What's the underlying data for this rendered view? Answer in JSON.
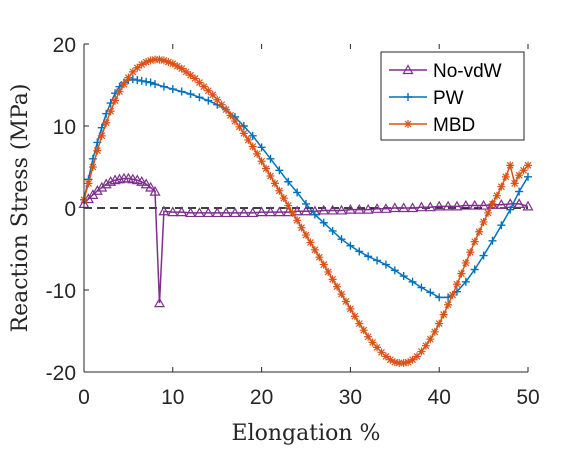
{
  "chart_data": {
    "type": "line",
    "title": "",
    "xlabel": "Elongation %",
    "ylabel": "Reaction Stress (MPa)",
    "xlim": [
      0,
      50
    ],
    "ylim": [
      -20,
      20
    ],
    "xticks": [
      "0",
      "10",
      "20",
      "30",
      "40",
      "50"
    ],
    "yticks": [
      "20",
      "10",
      "0",
      "-10",
      "-20"
    ],
    "grid": false,
    "legend_position": "top-right",
    "reference_line": {
      "y": 0,
      "style": "dashed",
      "color": "#000000"
    },
    "series": [
      {
        "name": "No-vdW",
        "color": "#7e2f8e",
        "marker": "triangle",
        "x": [
          0,
          0.5,
          1,
          1.5,
          2,
          2.5,
          3,
          3.5,
          4,
          4.5,
          5,
          5.5,
          6,
          6.5,
          7,
          7.5,
          8,
          8.5,
          9,
          10,
          11,
          12,
          13,
          14,
          15,
          16,
          17,
          18,
          19,
          20,
          21,
          22,
          23,
          24,
          25,
          26,
          27,
          28,
          29,
          30,
          31,
          32,
          33,
          34,
          35,
          36,
          37,
          38,
          39,
          40,
          41,
          42,
          43,
          44,
          45,
          46,
          47,
          48,
          49,
          50
        ],
        "y": [
          0.5,
          1.1,
          1.6,
          2.1,
          2.5,
          2.9,
          3.2,
          3.4,
          3.5,
          3.6,
          3.6,
          3.5,
          3.4,
          3.2,
          2.9,
          2.5,
          2.0,
          -11.6,
          -0.4,
          -0.5,
          -0.5,
          -0.6,
          -0.6,
          -0.6,
          -0.6,
          -0.6,
          -0.6,
          -0.6,
          -0.6,
          -0.5,
          -0.5,
          -0.5,
          -0.5,
          -0.4,
          -0.4,
          -0.4,
          -0.3,
          -0.3,
          -0.3,
          -0.2,
          -0.2,
          -0.2,
          -0.1,
          -0.1,
          0.0,
          0.0,
          0.0,
          0.1,
          0.1,
          0.2,
          0.2,
          0.2,
          0.3,
          0.3,
          0.3,
          0.4,
          0.4,
          0.5,
          0.5,
          0.2
        ]
      },
      {
        "name": "PW",
        "color": "#0072bd",
        "marker": "plus",
        "x": [
          0,
          0.5,
          1,
          1.5,
          2,
          2.5,
          3,
          3.5,
          4,
          4.5,
          5,
          5.5,
          6,
          6.5,
          7,
          7.5,
          8,
          9,
          10,
          11,
          12,
          13,
          14,
          15,
          16,
          17,
          18,
          19,
          20,
          21,
          22,
          23,
          24,
          25,
          26,
          27,
          28,
          29,
          30,
          31,
          32,
          33,
          34,
          35,
          36,
          37,
          38,
          39,
          40,
          41,
          42,
          43,
          44,
          45,
          46,
          47,
          48,
          49,
          50
        ],
        "y": [
          1.0,
          3.5,
          6.0,
          8.0,
          9.8,
          11.5,
          12.8,
          14.0,
          14.8,
          15.3,
          15.6,
          15.7,
          15.6,
          15.5,
          15.4,
          15.3,
          15.1,
          14.8,
          14.5,
          14.2,
          13.9,
          13.5,
          13.1,
          12.6,
          12.0,
          11.1,
          10.0,
          8.8,
          7.4,
          6.0,
          4.6,
          3.2,
          1.9,
          0.5,
          -0.8,
          -1.8,
          -2.8,
          -3.8,
          -4.6,
          -5.3,
          -5.9,
          -6.4,
          -6.9,
          -7.6,
          -8.3,
          -9.0,
          -9.7,
          -10.3,
          -10.9,
          -10.9,
          -10.2,
          -9.0,
          -7.5,
          -5.8,
          -4.0,
          -2.1,
          -0.2,
          2.0,
          3.8
        ]
      },
      {
        "name": "MBD",
        "color": "#d95319",
        "marker": "asterisk",
        "x": [
          0,
          0.5,
          1,
          1.5,
          2,
          2.5,
          3,
          3.5,
          4,
          4.5,
          5,
          5.5,
          6,
          6.5,
          7,
          7.5,
          8,
          8.5,
          9,
          9.5,
          10,
          10.5,
          11,
          11.5,
          12,
          12.5,
          13,
          13.5,
          14,
          14.5,
          15,
          15.5,
          16,
          16.5,
          17,
          17.5,
          18,
          18.5,
          19,
          19.5,
          20,
          20.5,
          21,
          21.5,
          22,
          22.5,
          23,
          23.5,
          24,
          24.5,
          25,
          25.5,
          26,
          26.5,
          27,
          27.5,
          28,
          28.5,
          29,
          29.5,
          30,
          30.5,
          31,
          31.5,
          32,
          32.5,
          33,
          33.5,
          34,
          34.5,
          35,
          35.5,
          36,
          36.5,
          37,
          37.5,
          38,
          38.5,
          39,
          39.5,
          40,
          40.5,
          41,
          41.5,
          42,
          42.5,
          43,
          43.5,
          44,
          44.5,
          45,
          45.5,
          46,
          46.5,
          47,
          47.5,
          48,
          48.5,
          49,
          49.5,
          50
        ],
        "y": [
          1.0,
          3.0,
          5.0,
          7.0,
          8.8,
          10.4,
          11.8,
          13.1,
          14.2,
          15.1,
          15.9,
          16.6,
          17.1,
          17.5,
          17.8,
          18.0,
          18.1,
          18.1,
          18.0,
          17.8,
          17.6,
          17.3,
          17.0,
          16.6,
          16.2,
          15.8,
          15.3,
          14.8,
          14.3,
          13.8,
          13.2,
          12.6,
          12.0,
          11.3,
          10.6,
          9.9,
          9.1,
          8.3,
          7.5,
          6.6,
          5.7,
          4.8,
          3.9,
          3.0,
          2.1,
          1.2,
          0.3,
          -0.6,
          -1.5,
          -2.4,
          -3.3,
          -4.2,
          -5.1,
          -6.0,
          -6.9,
          -7.8,
          -8.7,
          -9.6,
          -10.5,
          -11.4,
          -12.3,
          -13.2,
          -14.1,
          -14.9,
          -15.7,
          -16.4,
          -17.0,
          -17.6,
          -18.1,
          -18.5,
          -18.8,
          -18.9,
          -18.9,
          -18.8,
          -18.5,
          -18.1,
          -17.5,
          -16.8,
          -16.0,
          -15.1,
          -14.1,
          -13.0,
          -11.8,
          -10.6,
          -9.3,
          -8.0,
          -6.7,
          -5.4,
          -4.1,
          -2.9,
          -1.7,
          -0.6,
          0.5,
          1.5,
          2.6,
          3.8,
          5.2,
          3.0,
          4.0,
          4.6,
          5.2
        ]
      }
    ]
  }
}
